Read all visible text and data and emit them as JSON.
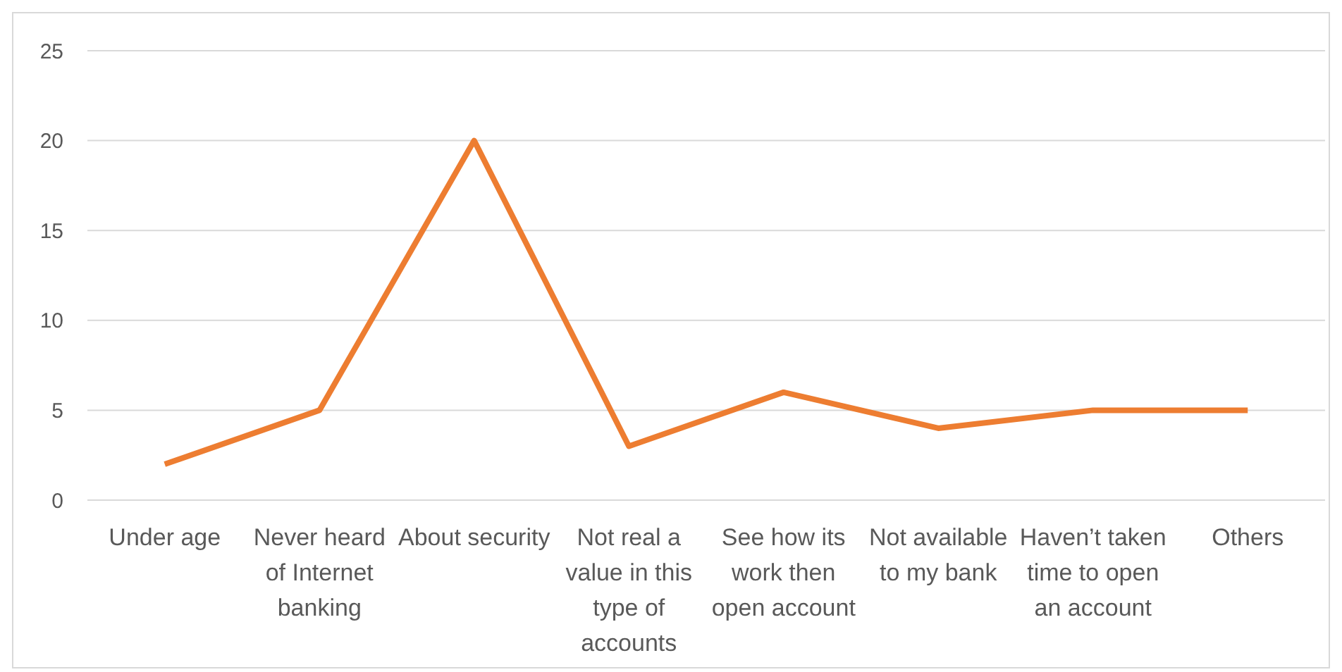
{
  "chart_data": {
    "type": "line",
    "categories": [
      "Under age",
      "Never heard of Internet banking",
      "About security",
      "Not real a value in this type of accounts",
      "See how its work then open account",
      "Not available to my bank",
      "Haven’t taken time to open an account",
      "Others"
    ],
    "series": [
      {
        "color": "#ed7d31",
        "values": [
          2,
          5,
          20,
          3,
          6,
          4,
          5,
          5
        ]
      }
    ],
    "ylim": [
      0,
      25
    ],
    "yticks": [
      0,
      5,
      10,
      15,
      20,
      25
    ],
    "grid": "y",
    "marker": "none",
    "line_style": "solid"
  }
}
